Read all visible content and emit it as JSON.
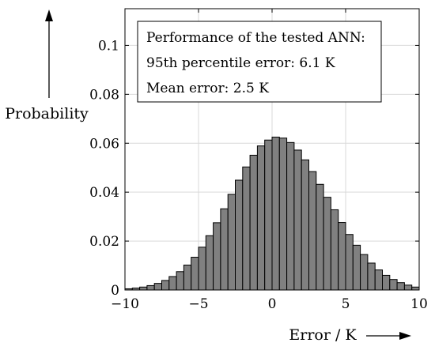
{
  "chart_data": {
    "type": "bar",
    "title": "",
    "xlabel": "Error / K",
    "ylabel": "Probability",
    "xlim": [
      -10,
      10
    ],
    "ylim": [
      0,
      0.115
    ],
    "x_ticks": [
      {
        "value": -10,
        "label": "−10"
      },
      {
        "value": -5,
        "label": "−5"
      },
      {
        "value": 0,
        "label": "0"
      },
      {
        "value": 5,
        "label": "5"
      },
      {
        "value": 10,
        "label": "10"
      }
    ],
    "y_ticks": [
      {
        "value": 0,
        "label": "0"
      },
      {
        "value": 0.02,
        "label": "0.02"
      },
      {
        "value": 0.04,
        "label": "0.04"
      },
      {
        "value": 0.06,
        "label": "0.06"
      },
      {
        "value": 0.08,
        "label": "0.08"
      },
      {
        "value": 0.1,
        "label": "0.1"
      }
    ],
    "grid": true,
    "bin_start": -10,
    "bin_width": 0.5,
    "values": [
      0.0005,
      0.0008,
      0.0012,
      0.0018,
      0.0027,
      0.0039,
      0.0055,
      0.0075,
      0.0102,
      0.0134,
      0.0175,
      0.0222,
      0.0275,
      0.0332,
      0.0391,
      0.0449,
      0.0503,
      0.0551,
      0.0589,
      0.0613,
      0.0625,
      0.0621,
      0.0603,
      0.0572,
      0.0532,
      0.0484,
      0.0432,
      0.0379,
      0.0328,
      0.0276,
      0.0227,
      0.0183,
      0.0145,
      0.011,
      0.0082,
      0.006,
      0.0043,
      0.003,
      0.002,
      0.0012
    ],
    "bar_color": "#808080",
    "annotation": {
      "lines": [
        "Performance of the tested ANN:",
        "95th percentile error: 6.1 K",
        "Mean error: 2.5 K"
      ],
      "placement": "top-left"
    }
  }
}
